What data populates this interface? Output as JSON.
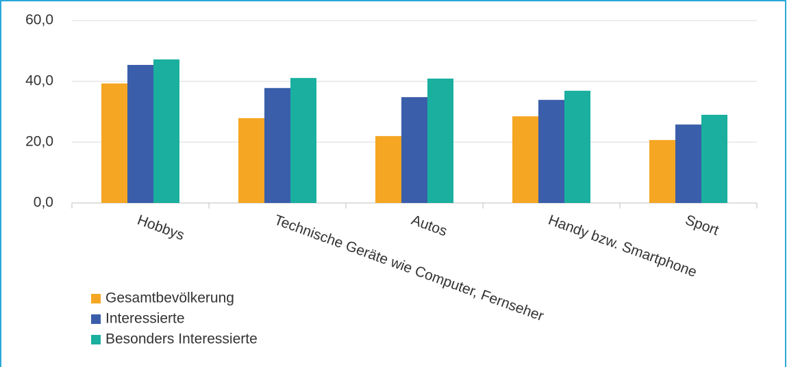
{
  "chart_data": {
    "type": "bar",
    "categories": [
      "Hobbys",
      "Technische Geräte wie Computer, Fernseher",
      "Autos",
      "Handy bzw. Smartphone",
      "Sport"
    ],
    "series": [
      {
        "name": "Gesamtbevölkerung",
        "color": "#f5a623",
        "values": [
          39.3,
          27.9,
          22.0,
          28.5,
          20.7
        ]
      },
      {
        "name": "Interessierte",
        "color": "#3a5eaa",
        "values": [
          45.4,
          37.8,
          34.8,
          33.9,
          25.8
        ]
      },
      {
        "name": "Besonders Interessierte",
        "color": "#1aaf9f",
        "values": [
          47.2,
          41.1,
          40.9,
          36.9,
          29.0
        ]
      }
    ],
    "ylim": [
      0,
      60
    ],
    "yticks": [
      {
        "value": 0,
        "label": "0,0"
      },
      {
        "value": 20,
        "label": "20,0"
      },
      {
        "value": 40,
        "label": "40,0"
      },
      {
        "value": 60,
        "label": "60,0"
      }
    ],
    "grid": true
  }
}
